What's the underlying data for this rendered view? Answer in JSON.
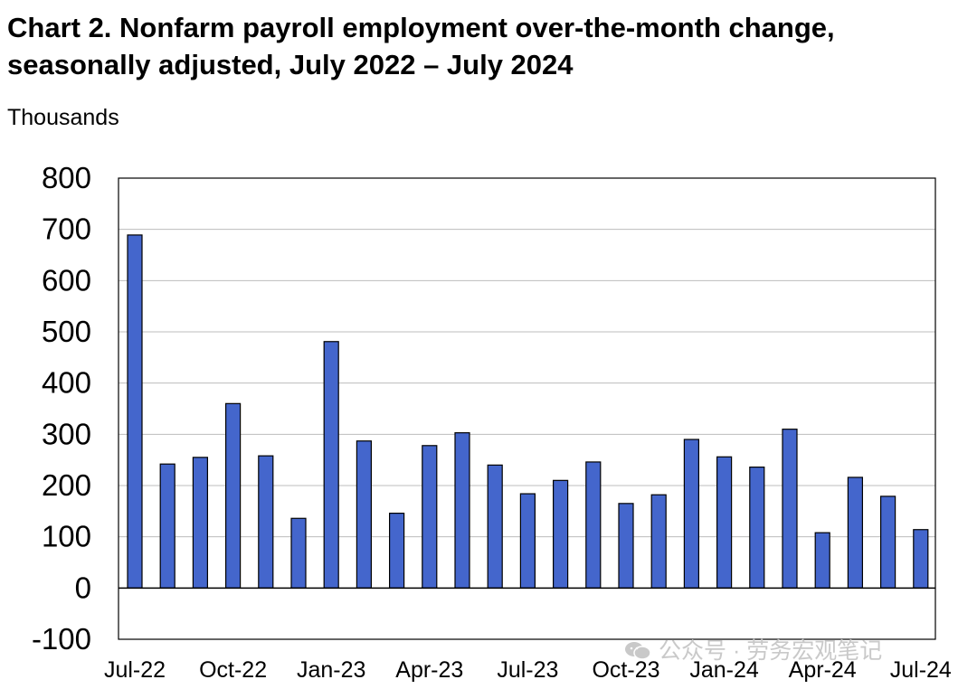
{
  "chart_data": {
    "type": "bar",
    "title": "Chart 2. Nonfarm payroll employment over-the-month change, seasonally adjusted, July 2022 – July 2024",
    "ylabel": "Thousands",
    "xlabel": "",
    "ylim": [
      -100,
      800
    ],
    "yticks": [
      "800",
      "700",
      "600",
      "500",
      "400",
      "300",
      "200",
      "100",
      "0",
      "-100"
    ],
    "ytick_values": [
      800,
      700,
      600,
      500,
      400,
      300,
      200,
      100,
      0,
      -100
    ],
    "xtick_labels": [
      "Jul-22",
      "Oct-22",
      "Jan-23",
      "Apr-23",
      "Jul-23",
      "Oct-23",
      "Jan-24",
      "Apr-24",
      "Jul-24"
    ],
    "xtick_every": 3,
    "grid": true,
    "bar_color": "#4466cc",
    "categories": [
      "Jul-22",
      "Aug-22",
      "Sep-22",
      "Oct-22",
      "Nov-22",
      "Dec-22",
      "Jan-23",
      "Feb-23",
      "Mar-23",
      "Apr-23",
      "May-23",
      "Jun-23",
      "Jul-23",
      "Aug-23",
      "Sep-23",
      "Oct-23",
      "Nov-23",
      "Dec-23",
      "Jan-24",
      "Feb-24",
      "Mar-24",
      "Apr-24",
      "May-24",
      "Jun-24",
      "Jul-24"
    ],
    "values": [
      689,
      242,
      255,
      360,
      258,
      136,
      481,
      287,
      146,
      278,
      303,
      240,
      184,
      210,
      246,
      165,
      182,
      290,
      256,
      236,
      310,
      108,
      216,
      179,
      114
    ]
  },
  "watermark": {
    "text": "公众号 · 劳务宏观笔记",
    "icon": "wechat-icon"
  }
}
